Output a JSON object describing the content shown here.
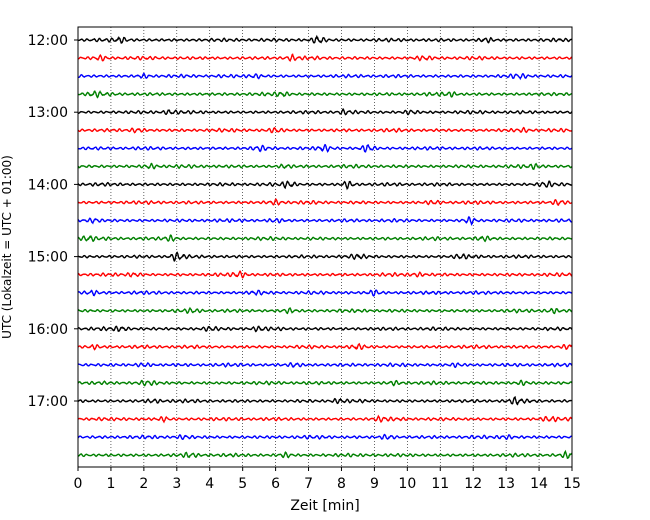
{
  "chart_data": {
    "type": "line",
    "title": "",
    "xlabel": "Zeit  [min]",
    "ylabel": "UTC (Lokalzeit = UTC + 01:00)",
    "xlim": [
      0,
      15
    ],
    "x_ticks": [
      0,
      1,
      2,
      3,
      4,
      5,
      6,
      7,
      8,
      9,
      10,
      11,
      12,
      13,
      14,
      15
    ],
    "x_tick_labels": [
      "0",
      "1",
      "2",
      "3",
      "4",
      "5",
      "6",
      "7",
      "8",
      "9",
      "10",
      "11",
      "12",
      "13",
      "14",
      "15"
    ],
    "y_tick_labels": [
      "12:00",
      "13:00",
      "14:00",
      "15:00",
      "16:00",
      "17:00"
    ],
    "grid": "vertical-dotted",
    "trace_colors": [
      "#000000",
      "#ff0000",
      "#0000ff",
      "#008000"
    ],
    "traces": [
      {
        "start": "12:00",
        "color": "#000000",
        "bursts": [
          [
            1.3,
            0.7
          ],
          [
            7.3,
            1.2
          ],
          [
            12.4,
            0.6
          ]
        ]
      },
      {
        "start": "12:15",
        "color": "#ff0000",
        "bursts": [
          [
            0.7,
            0.6
          ],
          [
            6.5,
            0.6
          ],
          [
            10.5,
            0.5
          ]
        ]
      },
      {
        "start": "12:30",
        "color": "#0000ff",
        "bursts": [
          [
            2.0,
            0.5
          ],
          [
            5.4,
            0.5
          ],
          [
            13.4,
            0.5
          ]
        ]
      },
      {
        "start": "12:45",
        "color": "#008000",
        "bursts": [
          [
            0.5,
            0.6
          ],
          [
            6.2,
            0.5
          ],
          [
            11.3,
            0.5
          ]
        ]
      },
      {
        "start": "13:00",
        "color": "#000000",
        "bursts": [
          [
            2.8,
            0.6
          ],
          [
            8.1,
            0.5
          ],
          [
            10.1,
            0.6
          ]
        ]
      },
      {
        "start": "13:15",
        "color": "#ff0000",
        "bursts": [
          [
            1.8,
            0.6
          ],
          [
            6.0,
            0.6
          ],
          [
            13.5,
            0.5
          ]
        ]
      },
      {
        "start": "13:30",
        "color": "#0000ff",
        "bursts": [
          [
            5.5,
            0.6
          ],
          [
            7.5,
            0.7
          ],
          [
            8.8,
            1.1
          ]
        ]
      },
      {
        "start": "13:45",
        "color": "#008000",
        "bursts": [
          [
            2.2,
            0.6
          ],
          [
            6.3,
            0.5
          ],
          [
            13.9,
            0.6
          ]
        ]
      },
      {
        "start": "14:00",
        "color": "#000000",
        "bursts": [
          [
            6.4,
            0.9
          ],
          [
            8.2,
            0.9
          ],
          [
            14.2,
            0.7
          ]
        ]
      },
      {
        "start": "14:15",
        "color": "#ff0000",
        "bursts": [
          [
            6.0,
            0.7
          ],
          [
            10.8,
            0.5
          ],
          [
            14.6,
            0.8
          ]
        ]
      },
      {
        "start": "14:30",
        "color": "#0000ff",
        "bursts": [
          [
            0.5,
            0.6
          ],
          [
            6.0,
            0.6
          ],
          [
            11.9,
            0.9
          ]
        ]
      },
      {
        "start": "14:45",
        "color": "#008000",
        "bursts": [
          [
            0.3,
            0.7
          ],
          [
            2.8,
            0.7
          ],
          [
            12.3,
            0.6
          ]
        ]
      },
      {
        "start": "15:00",
        "color": "#000000",
        "bursts": [
          [
            3.0,
            1.0
          ],
          [
            8.5,
            0.5
          ],
          [
            11.6,
            0.6
          ]
        ]
      },
      {
        "start": "15:15",
        "color": "#ff0000",
        "bursts": [
          [
            4.9,
            0.8
          ],
          [
            1.7,
            0.5
          ],
          [
            10.3,
            0.5
          ]
        ]
      },
      {
        "start": "15:30",
        "color": "#0000ff",
        "bursts": [
          [
            0.4,
            0.5
          ],
          [
            5.4,
            0.5
          ],
          [
            9.0,
            0.8
          ]
        ]
      },
      {
        "start": "15:45",
        "color": "#008000",
        "bursts": [
          [
            3.5,
            0.5
          ],
          [
            6.4,
            0.6
          ],
          [
            14.4,
            0.6
          ]
        ]
      },
      {
        "start": "16:00",
        "color": "#000000",
        "bursts": [
          [
            1.3,
            0.6
          ],
          [
            4.0,
            0.6
          ],
          [
            5.5,
            0.5
          ]
        ]
      },
      {
        "start": "16:15",
        "color": "#ff0000",
        "bursts": [
          [
            0.5,
            0.5
          ],
          [
            8.5,
            0.6
          ],
          [
            14.9,
            0.7
          ]
        ]
      },
      {
        "start": "16:30",
        "color": "#0000ff",
        "bursts": [
          [
            2.0,
            0.5
          ],
          [
            6.6,
            0.6
          ],
          [
            11.5,
            0.5
          ]
        ]
      },
      {
        "start": "16:45",
        "color": "#008000",
        "bursts": [
          [
            2.1,
            0.6
          ],
          [
            9.6,
            0.5
          ],
          [
            13.5,
            0.5
          ]
        ]
      },
      {
        "start": "17:00",
        "color": "#000000",
        "bursts": [
          [
            2.3,
            0.5
          ],
          [
            7.9,
            0.5
          ],
          [
            13.3,
            0.8
          ]
        ]
      },
      {
        "start": "17:15",
        "color": "#ff0000",
        "bursts": [
          [
            2.6,
            0.5
          ],
          [
            9.2,
            0.5
          ],
          [
            14.3,
            0.6
          ]
        ]
      },
      {
        "start": "17:30",
        "color": "#0000ff",
        "bursts": [
          [
            3.2,
            0.5
          ],
          [
            9.4,
            0.7
          ],
          [
            13.0,
            0.5
          ]
        ]
      },
      {
        "start": "17:45",
        "color": "#008000",
        "bursts": [
          [
            3.4,
            0.6
          ],
          [
            6.3,
            0.6
          ],
          [
            14.9,
            0.9
          ]
        ]
      }
    ]
  }
}
